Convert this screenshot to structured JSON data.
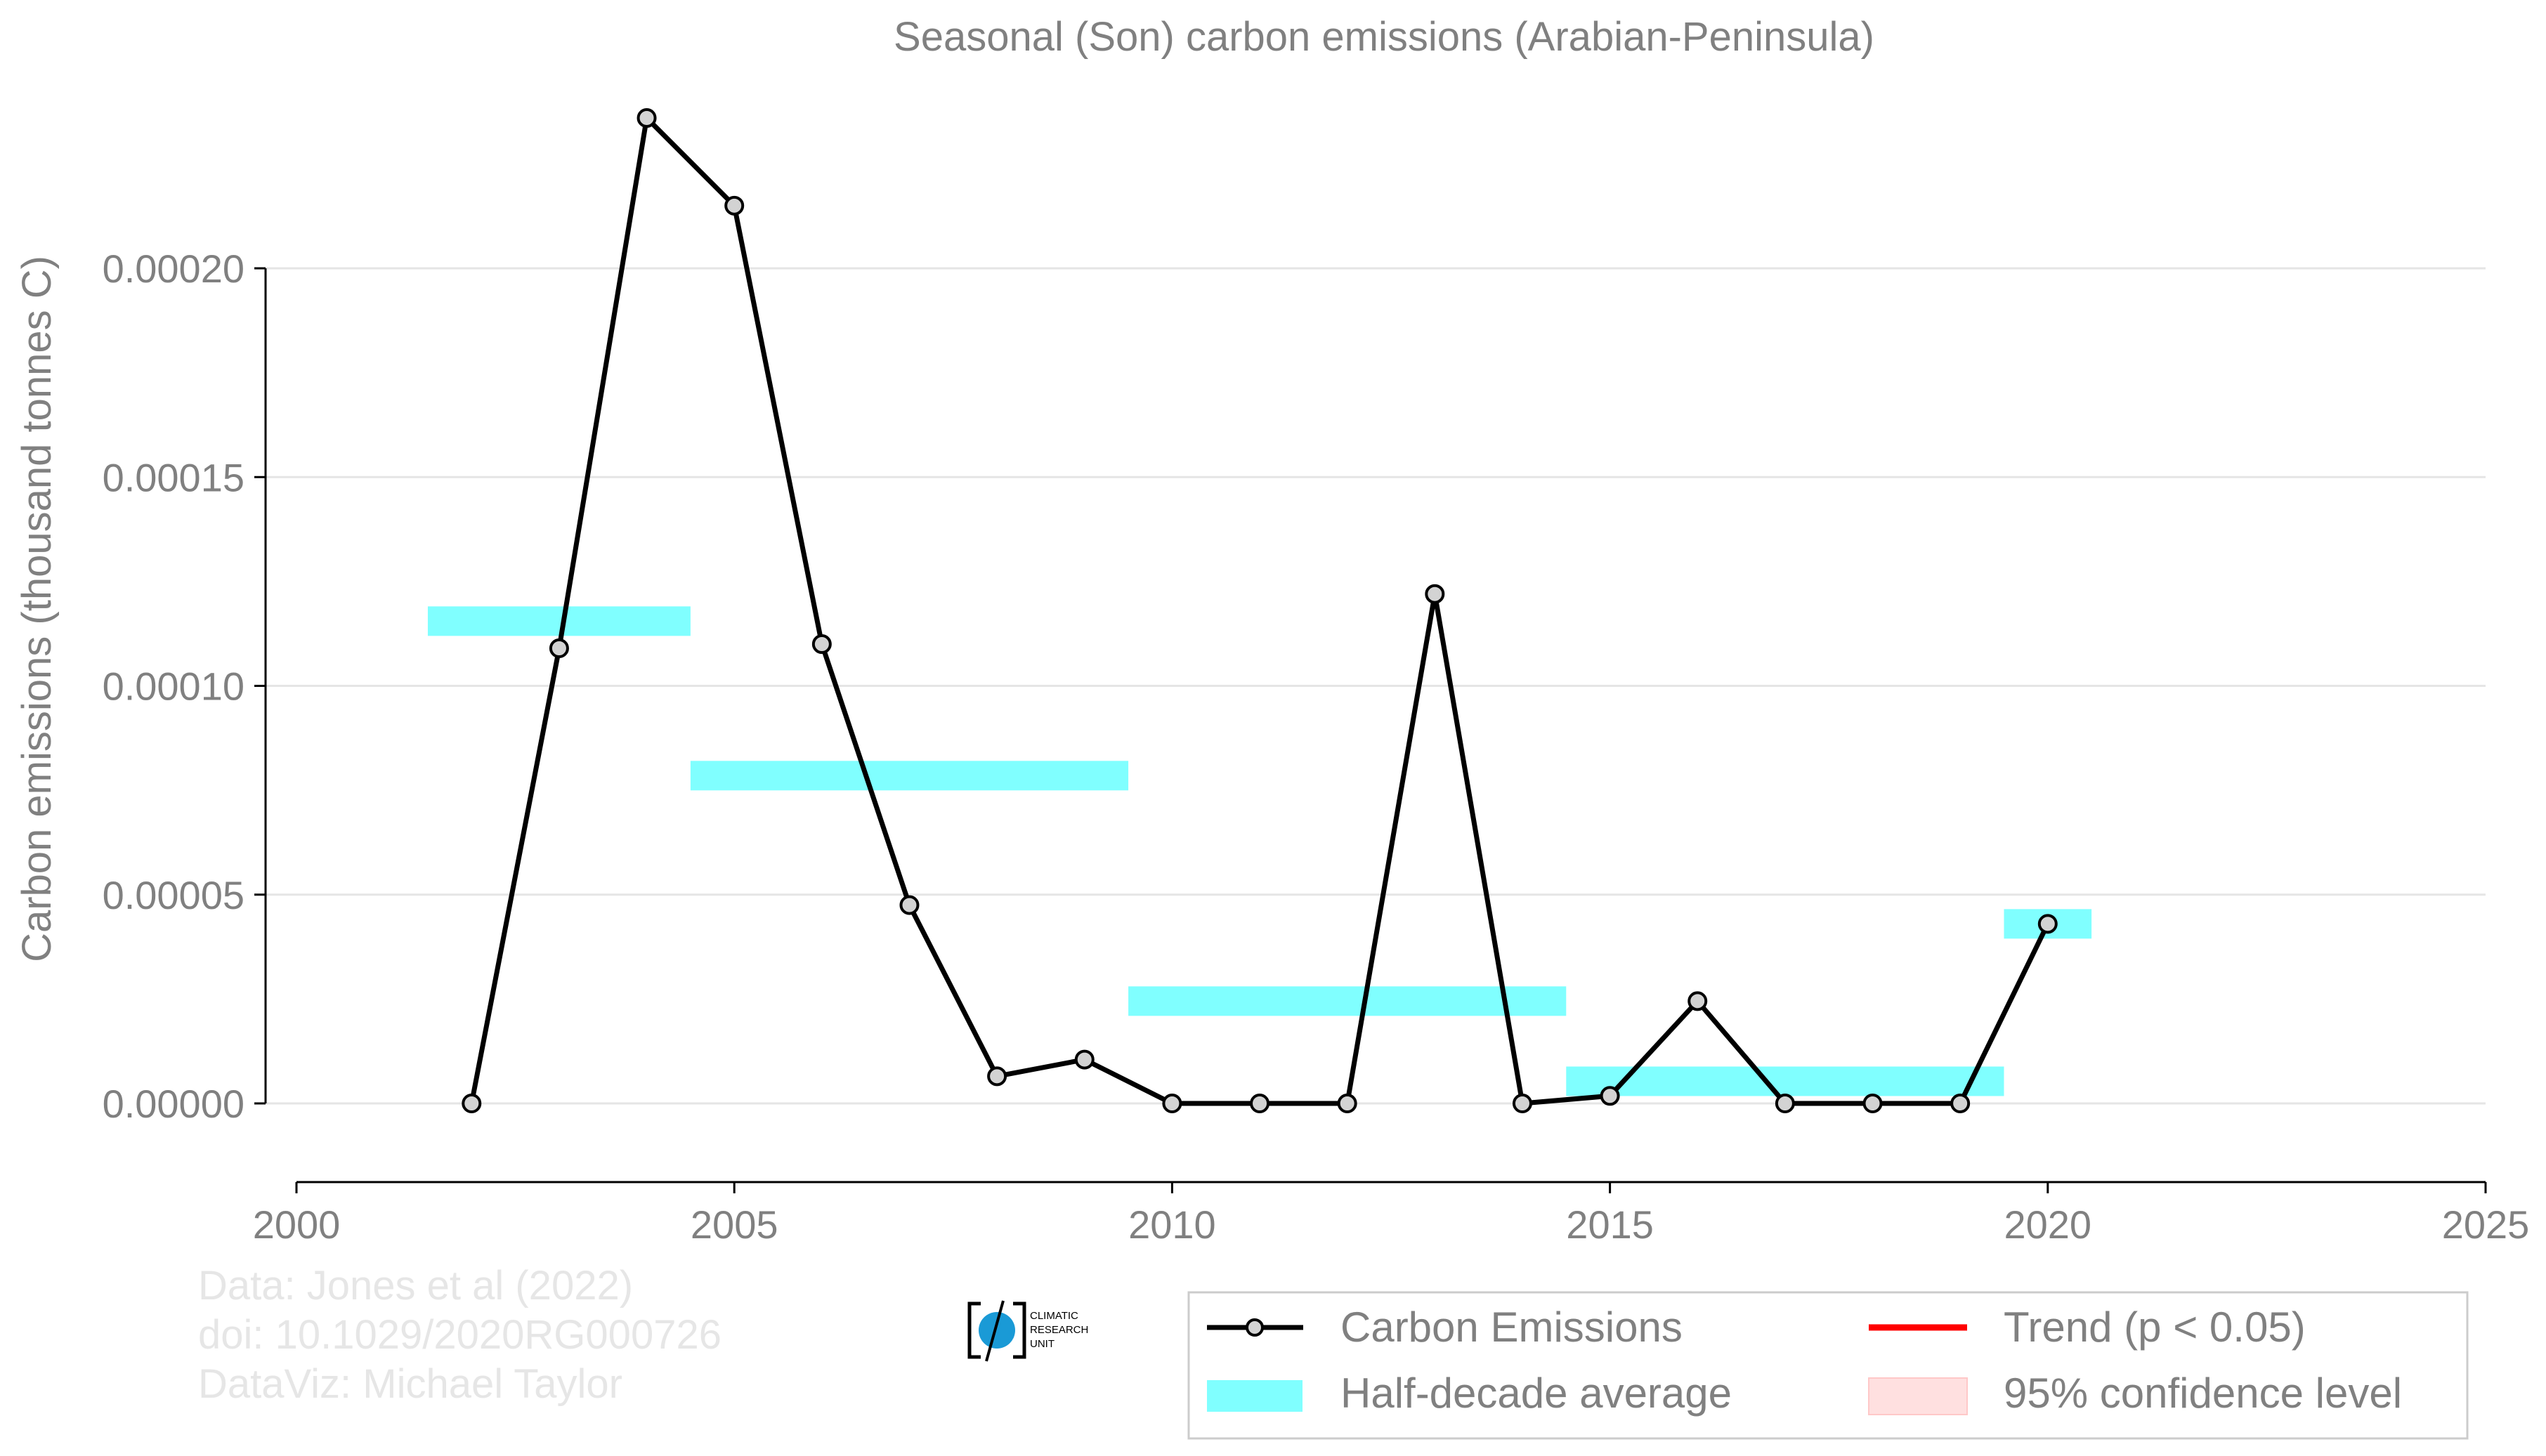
{
  "chart_data": {
    "type": "line",
    "title": "Seasonal (Son) carbon emissions (Arabian-Peninsula)",
    "xlabel": "",
    "ylabel": "Carbon emissions (thousand tonnes C)",
    "xlim": [
      2000,
      2025
    ],
    "ylim": [
      -1.7e-05,
      0.00024
    ],
    "x_ticks": [
      2000,
      2005,
      2010,
      2015,
      2020,
      2025
    ],
    "x_tick_labels": [
      "2000",
      "2005",
      "2010",
      "2015",
      "2020",
      "2025"
    ],
    "y_ticks": [
      0,
      5e-05,
      0.0001,
      0.00015,
      0.0002
    ],
    "y_tick_labels": [
      "0.00000",
      "0.00005",
      "0.00010",
      "0.00015",
      "0.00020"
    ],
    "grid": true,
    "legend_position": "bottom-right",
    "series": [
      {
        "name": "Carbon Emissions",
        "color": "#000000",
        "marker_fill": "#d3d3d3",
        "x": [
          2002,
          2003,
          2004,
          2005,
          2006,
          2007,
          2008,
          2009,
          2010,
          2011,
          2012,
          2013,
          2014,
          2015,
          2016,
          2017,
          2018,
          2019,
          2020
        ],
        "y": [
          0.0,
          0.000109,
          0.000236,
          0.000215,
          0.00011,
          4.75e-05,
          6.5e-06,
          1.05e-05,
          0.0,
          0.0,
          0.0,
          0.000122,
          0.0,
          1.8e-06,
          2.45e-05,
          0.0,
          0.0,
          0.0,
          4.3e-05
        ]
      }
    ],
    "half_decade_average": {
      "name": "Half-decade average",
      "color": "#80ffff",
      "segments": [
        {
          "x0": 2001.5,
          "x1": 2004.5,
          "y": 0.0001155
        },
        {
          "x0": 2004.5,
          "x1": 2009.5,
          "y": 7.85e-05
        },
        {
          "x0": 2009.5,
          "x1": 2014.5,
          "y": 2.45e-05
        },
        {
          "x0": 2014.5,
          "x1": 2019.5,
          "y": 5.3e-06
        },
        {
          "x0": 2019.5,
          "x1": 2020.5,
          "y": 4.3e-05
        }
      ]
    },
    "legend": {
      "entries": [
        {
          "label": "Carbon Emissions",
          "kind": "line-marker",
          "color": "#000000"
        },
        {
          "label": "Trend (p < 0.05)",
          "kind": "line",
          "color": "#ff0000"
        },
        {
          "label": "Half-decade average",
          "kind": "patch",
          "color": "#80ffff"
        },
        {
          "label": "95% confidence level",
          "kind": "patch",
          "color": "#ffe0e0"
        }
      ]
    }
  },
  "credits": {
    "line1": "Data: Jones et al (2022)",
    "line2": "doi: 10.1029/2020RG000726",
    "line3": "DataViz: Michael Taylor"
  },
  "logo": {
    "line1": "CLIMATIC",
    "line2": "RESEARCH",
    "line3": "UNIT",
    "color": "#1a9ad6"
  }
}
